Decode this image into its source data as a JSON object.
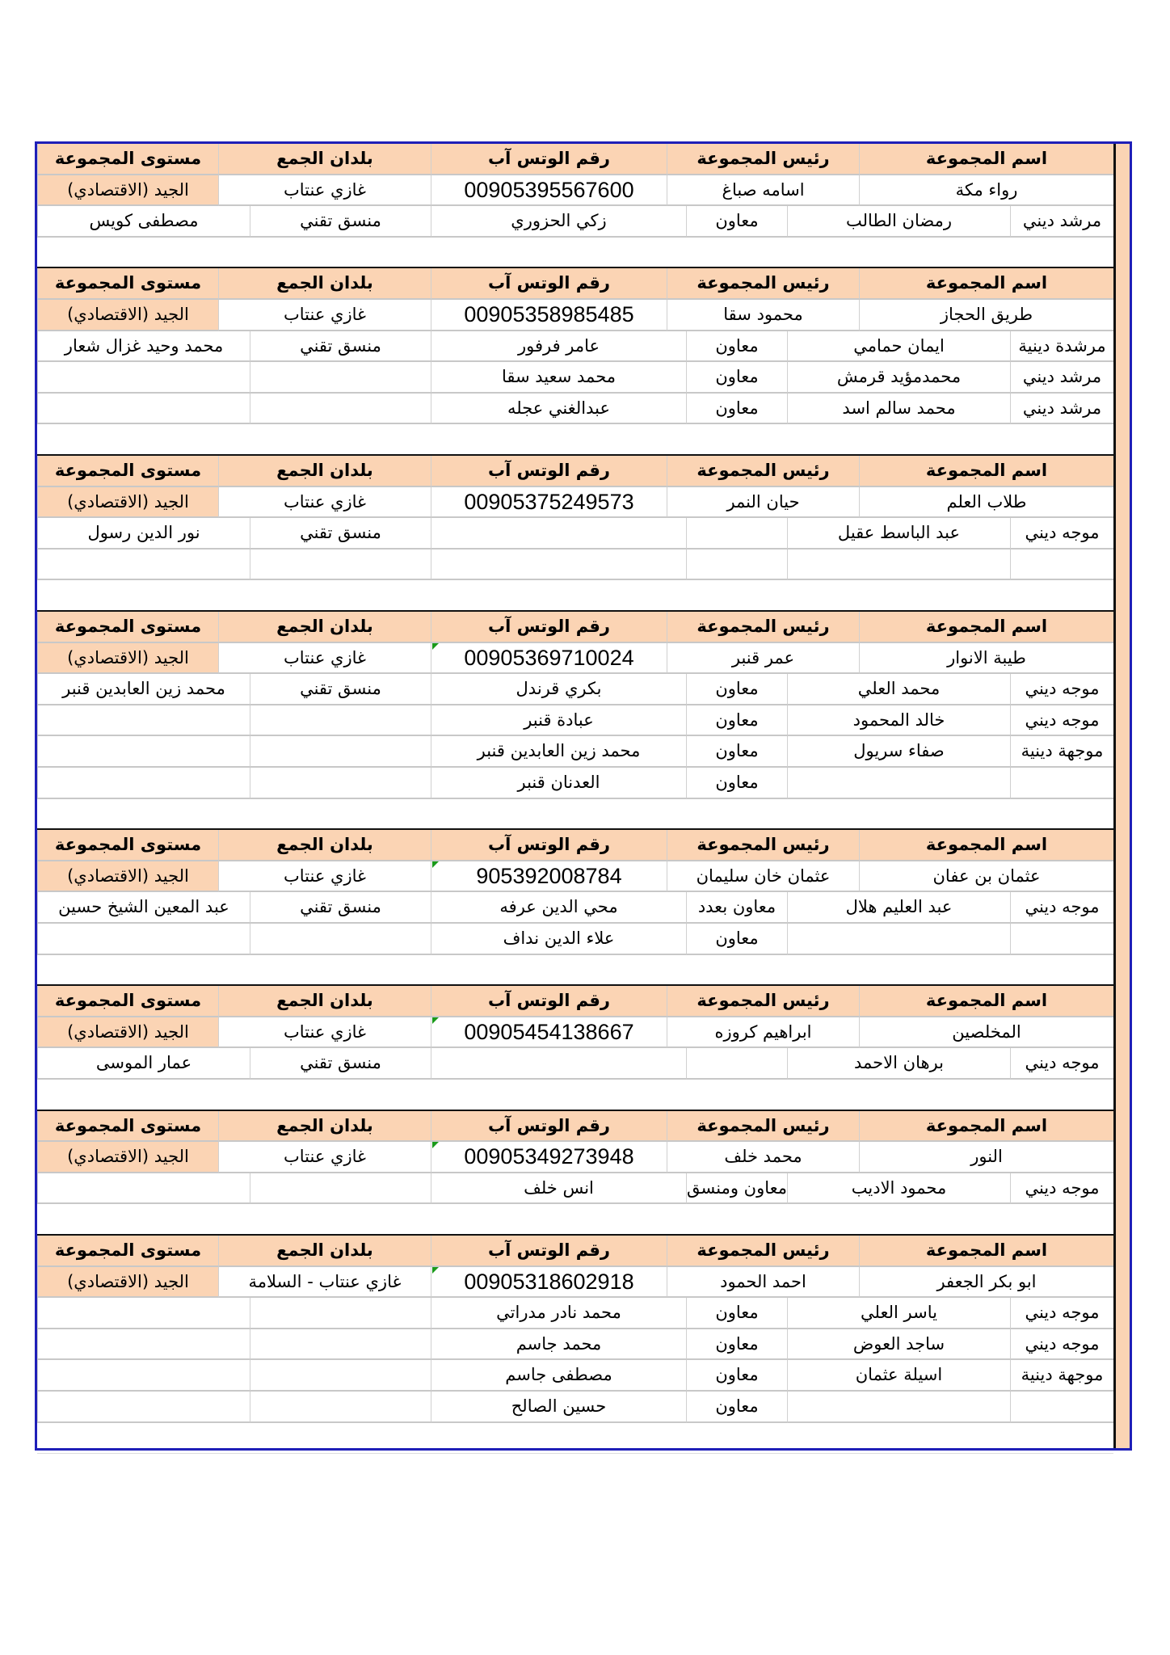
{
  "headers": {
    "group_name": "اسم المجموعة",
    "leader": "رئيس المجموعة",
    "phone": "رقم الوتس آب",
    "country": "بلدان الجمع",
    "level": "مستوى المجموعة"
  },
  "colors": {
    "header_fill": "#fbd4b4",
    "frame_border": "#1f1fb8",
    "flag_green": "#1a9a1a"
  },
  "groups": [
    {
      "name": "رواء مكة",
      "leader": "اسامه صباغ",
      "phone": "00905395567600",
      "country": "غازي عنتاب",
      "level": "الجيد (الاقتصادي)",
      "phone_text_flag": false,
      "members": [
        {
          "role": "مرشد ديني",
          "name": "رمضان الطالب",
          "assistant_role": "معاون",
          "assistant_name": "زكي الحزوري",
          "coordinator_role": "منسق تقني",
          "coordinator_name": "مصطفى كويس"
        }
      ]
    },
    {
      "name": "طريق الحجاز",
      "leader": "محمود سقا",
      "phone": "00905358985485",
      "country": "غازي عنتاب",
      "level": "الجيد (الاقتصادي)",
      "phone_text_flag": false,
      "members": [
        {
          "role": "مرشدة دينية",
          "name": "ايمان حمامي",
          "assistant_role": "معاون",
          "assistant_name": "عامر فرفور",
          "coordinator_role": "منسق تقني",
          "coordinator_name": "محمد وحيد غزال شعار"
        },
        {
          "role": "مرشد ديني",
          "name": "محمدمؤيد قرمش",
          "assistant_role": "معاون",
          "assistant_name": "محمد سعيد سقا"
        },
        {
          "role": "مرشد ديني",
          "name": "محمد سالم اسد",
          "assistant_role": "معاون",
          "assistant_name": "عبدالغني عجله"
        }
      ]
    },
    {
      "name": "طلاب العلم",
      "leader": "حيان النمر",
      "phone": "00905375249573",
      "country": "غازي عنتاب",
      "level": "الجيد (الاقتصادي)",
      "phone_text_flag": false,
      "members": [
        {
          "role": "موجه ديني",
          "name": "عبد الباسط عقيل",
          "coordinator_role": "منسق تقني",
          "coordinator_name": "نور الدين رسول"
        },
        {}
      ]
    },
    {
      "name": "طيبة الانوار",
      "leader": "عمر قنبر",
      "phone": "00905369710024",
      "country": "غازي عنتاب",
      "level": "الجيد (الاقتصادي)",
      "phone_text_flag": true,
      "members": [
        {
          "role": "موجه ديني",
          "name": "محمد العلي",
          "assistant_role": "معاون",
          "assistant_name": "بكري قرندل",
          "coordinator_role": "منسق تقني",
          "coordinator_name": "محمد زين العابدين قنبر"
        },
        {
          "role": "موجه ديني",
          "name": "خالد المحمود",
          "assistant_role": "معاون",
          "assistant_name": "عبادة قنبر"
        },
        {
          "role": "موجهة دينية",
          "name": "صفاء سريول",
          "assistant_role": "معاون",
          "assistant_name": "محمد زين العابدين قنبر"
        },
        {
          "assistant_role": "معاون",
          "assistant_name": "العدنان قنبر"
        }
      ]
    },
    {
      "name": "عثمان بن عفان",
      "leader": "عثمان خان سليمان",
      "phone": "905392008784",
      "country": "غازي عنتاب",
      "level": "الجيد (الاقتصادي)",
      "phone_text_flag": true,
      "members": [
        {
          "role": "موجه ديني",
          "name": "عبد العليم هلال",
          "assistant_role": "معاون بعدد",
          "assistant_name": "محي الدين عرفه",
          "coordinator_role": "منسق تقني",
          "coordinator_name": "عبد المعين الشيخ حسين"
        },
        {
          "assistant_role": "معاون",
          "assistant_name": "علاء الدين نداف"
        }
      ]
    },
    {
      "name": "المخلصين",
      "leader": "ابراهيم كروزه",
      "phone": "00905454138667",
      "country": "غازي عنتاب",
      "level": "الجيد (الاقتصادي)",
      "phone_text_flag": true,
      "members": [
        {
          "role": "موجه ديني",
          "name": "برهان الاحمد",
          "coordinator_role": "منسق تقني",
          "coordinator_name": "عمار الموسى"
        }
      ]
    },
    {
      "name": "النور",
      "leader": "محمد خلف",
      "phone": "00905349273948",
      "country": "غازي عنتاب",
      "level": "الجيد (الاقتصادي)",
      "phone_text_flag": true,
      "members": [
        {
          "role": "موجه ديني",
          "name": "محمود الاديب",
          "assistant_role": "معاون ومنسق",
          "assistant_name": "انس خلف"
        }
      ]
    },
    {
      "name": "ابو بكر الجعفر",
      "leader": "احمد الحمود",
      "phone": "00905318602918",
      "country": "غازي عنتاب - السلامة",
      "level": "الجيد (الاقتصادي)",
      "phone_text_flag": true,
      "members": [
        {
          "role": "موجه ديني",
          "name": "ياسر العلي",
          "assistant_role": "معاون",
          "assistant_name": "محمد نادر مدراتي"
        },
        {
          "role": "موجه ديني",
          "name": "ساجد العوض",
          "assistant_role": "معاون",
          "assistant_name": "محمد  جاسم"
        },
        {
          "role": "موجهة دينية",
          "name": "اسيلة عثمان",
          "assistant_role": "معاون",
          "assistant_name": "مصطفى  جاسم"
        },
        {
          "assistant_role": "معاون",
          "assistant_name": "حسين الصالح"
        }
      ]
    }
  ]
}
